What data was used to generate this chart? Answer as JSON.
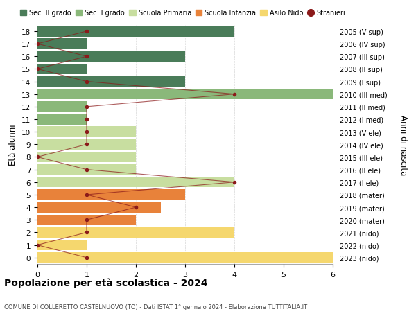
{
  "ages": [
    0,
    1,
    2,
    3,
    4,
    5,
    6,
    7,
    8,
    9,
    10,
    11,
    12,
    13,
    14,
    15,
    16,
    17,
    18
  ],
  "right_labels": [
    "2023 (nido)",
    "2022 (nido)",
    "2021 (nido)",
    "2020 (mater)",
    "2019 (mater)",
    "2018 (mater)",
    "2017 (I ele)",
    "2016 (II ele)",
    "2015 (III ele)",
    "2014 (IV ele)",
    "2013 (V ele)",
    "2012 (I med)",
    "2011 (II med)",
    "2010 (III med)",
    "2009 (I sup)",
    "2008 (II sup)",
    "2007 (III sup)",
    "2006 (IV sup)",
    "2005 (V sup)"
  ],
  "bar_values": [
    6,
    1,
    4,
    2,
    2.5,
    3,
    4,
    2,
    2,
    2,
    2,
    1,
    1,
    6,
    3,
    1,
    3,
    1,
    4
  ],
  "bar_colors": [
    "#f5d76e",
    "#f5d76e",
    "#f5d76e",
    "#e8823a",
    "#e8823a",
    "#e8823a",
    "#c8dea0",
    "#c8dea0",
    "#c8dea0",
    "#c8dea0",
    "#c8dea0",
    "#8ab87a",
    "#8ab87a",
    "#8ab87a",
    "#4a7c59",
    "#4a7c59",
    "#4a7c59",
    "#4a7c59",
    "#4a7c59"
  ],
  "stranieri": [
    1,
    0,
    1,
    1,
    2,
    1,
    4,
    1,
    0,
    1,
    1,
    1,
    1,
    4,
    1,
    0,
    1,
    0,
    1
  ],
  "stranieri_color": "#8b1a1a",
  "xlim": [
    0,
    6
  ],
  "ylim": [
    -0.5,
    18.5
  ],
  "ylabel": "Età alunni",
  "right_ylabel": "Anni di nascita",
  "title": "Popolazione per età scolastica - 2024",
  "subtitle": "COMUNE DI COLLERETTO CASTELNUOVO (TO) - Dati ISTAT 1° gennaio 2024 - Elaborazione TUTTITALIA.IT",
  "legend_labels": [
    "Sec. II grado",
    "Sec. I grado",
    "Scuola Primaria",
    "Scuola Infanzia",
    "Asilo Nido",
    "Stranieri"
  ],
  "legend_colors": [
    "#4a7c59",
    "#8ab87a",
    "#c8dea0",
    "#e8823a",
    "#f5d76e",
    "#8b1a1a"
  ],
  "bg_color": "#ffffff",
  "grid_color": "#d8d8d8"
}
